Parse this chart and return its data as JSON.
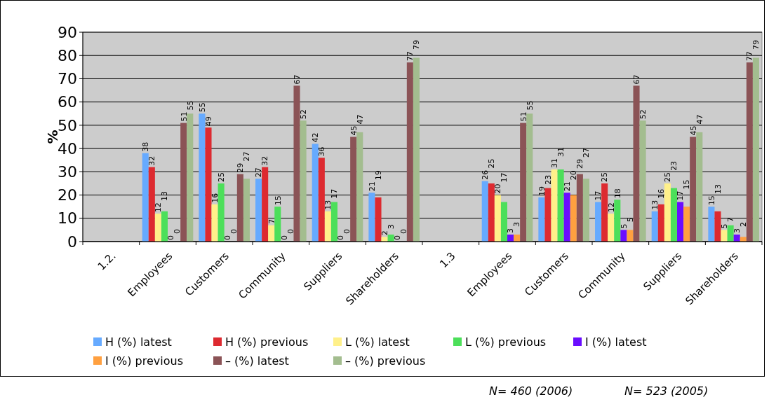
{
  "chart_data": {
    "type": "bar",
    "ylabel": "%",
    "categories": [
      "1.2.",
      "Employees",
      "Customers",
      "Community",
      "Suppliers",
      "Shareholders",
      "1.3",
      "Employees",
      "Customers",
      "Community",
      "Suppliers",
      "Shareholders"
    ],
    "series": [
      {
        "name": "H (%) latest",
        "color": "#66aaff",
        "values": [
          null,
          38,
          55,
          27,
          42,
          21,
          null,
          26,
          19,
          17,
          13,
          15
        ]
      },
      {
        "name": "H (%) previous",
        "color": "#dd2a30",
        "values": [
          null,
          32,
          49,
          32,
          36,
          19,
          null,
          25,
          23,
          25,
          16,
          13
        ]
      },
      {
        "name": "L (%) latest",
        "color": "#fff08a",
        "values": [
          null,
          12,
          16,
          7,
          13,
          2,
          null,
          20,
          31,
          12,
          25,
          5
        ]
      },
      {
        "name": "L (%) previous",
        "color": "#4cdf5a",
        "values": [
          null,
          13,
          25,
          15,
          17,
          3,
          null,
          17,
          31,
          18,
          23,
          7
        ]
      },
      {
        "name": "I (%) latest",
        "color": "#6a0dff",
        "values": [
          null,
          0,
          0,
          0,
          0,
          0,
          null,
          3,
          21,
          5,
          17,
          3
        ]
      },
      {
        "name": "I (%) previous",
        "color": "#ffa040",
        "values": [
          null,
          0,
          0,
          0,
          0,
          0,
          null,
          3,
          20,
          5,
          15,
          2
        ]
      },
      {
        "name": "– (%) latest",
        "color": "#8b5356",
        "values": [
          null,
          51,
          29,
          67,
          45,
          77,
          null,
          51,
          29,
          67,
          45,
          77
        ]
      },
      {
        "name": "– (%) previous",
        "color": "#a3bd8f",
        "values": [
          null,
          55,
          27,
          52,
          47,
          79,
          null,
          55,
          27,
          52,
          47,
          79
        ]
      }
    ],
    "ylim": [
      0,
      90
    ],
    "yticks": [
      0,
      10,
      20,
      30,
      40,
      50,
      60,
      70,
      80,
      90
    ],
    "grid": "y",
    "legend": "bottom",
    "data_labels": true,
    "annotations": [
      "N= 460 (2006)",
      "N= 523 (2005)"
    ]
  }
}
